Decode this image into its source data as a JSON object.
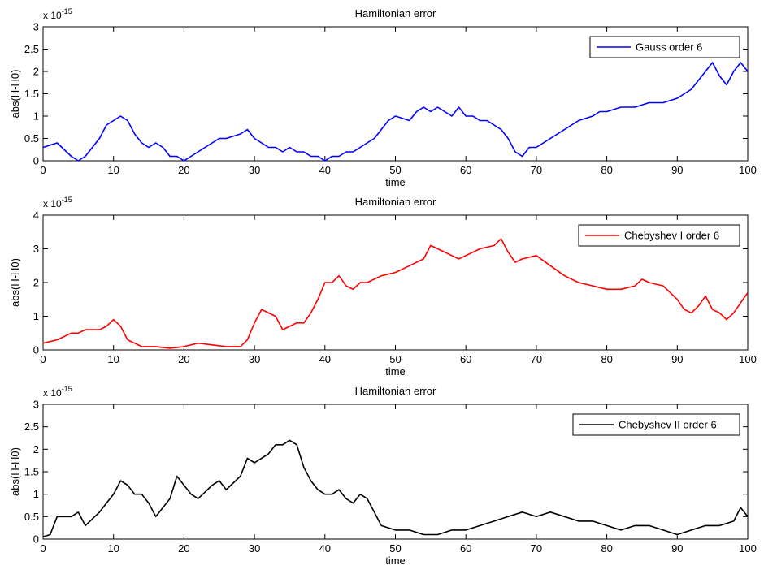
{
  "chart_data": [
    {
      "type": "line",
      "title": "Hamiltonian error",
      "xlabel": "time",
      "ylabel": "abs(H-H0)",
      "xlim": [
        0,
        100
      ],
      "ylim": [
        0,
        3
      ],
      "xticks": [
        0,
        10,
        20,
        30,
        40,
        50,
        60,
        70,
        80,
        90,
        100
      ],
      "yticks": [
        0,
        0.5,
        1,
        1.5,
        2,
        2.5,
        3
      ],
      "scale_base": "x 10",
      "scale_exponent": "-15",
      "legend_position": "top-right",
      "series": [
        {
          "name": "Gauss order 6",
          "color": "#0000ff",
          "x": [
            0,
            2,
            4,
            5,
            6,
            8,
            9,
            10,
            11,
            12,
            13,
            14,
            15,
            16,
            17,
            18,
            19,
            20,
            22,
            24,
            25,
            26,
            28,
            29,
            30,
            31,
            32,
            33,
            34,
            35,
            36,
            37,
            38,
            39,
            40,
            41,
            42,
            43,
            44,
            45,
            46,
            47,
            48,
            49,
            50,
            52,
            53,
            54,
            55,
            56,
            57,
            58,
            59,
            60,
            61,
            62,
            63,
            64,
            65,
            66,
            67,
            68,
            69,
            70,
            72,
            74,
            76,
            78,
            79,
            80,
            82,
            84,
            86,
            88,
            90,
            91,
            92,
            93,
            94,
            95,
            96,
            97,
            98,
            99,
            100
          ],
          "values": [
            0.3,
            0.4,
            0.1,
            0.0,
            0.1,
            0.5,
            0.8,
            0.9,
            1.0,
            0.9,
            0.6,
            0.4,
            0.3,
            0.4,
            0.3,
            0.1,
            0.1,
            0.0,
            0.2,
            0.4,
            0.5,
            0.5,
            0.6,
            0.7,
            0.5,
            0.4,
            0.3,
            0.3,
            0.2,
            0.3,
            0.2,
            0.2,
            0.1,
            0.1,
            0.0,
            0.1,
            0.1,
            0.2,
            0.2,
            0.3,
            0.4,
            0.5,
            0.7,
            0.9,
            1.0,
            0.9,
            1.1,
            1.2,
            1.1,
            1.2,
            1.1,
            1.0,
            1.2,
            1.0,
            1.0,
            0.9,
            0.9,
            0.8,
            0.7,
            0.5,
            0.2,
            0.1,
            0.3,
            0.3,
            0.5,
            0.7,
            0.9,
            1.0,
            1.1,
            1.1,
            1.2,
            1.2,
            1.3,
            1.3,
            1.4,
            1.5,
            1.6,
            1.8,
            2.0,
            2.2,
            1.9,
            1.7,
            2.0,
            2.2,
            2.0
          ]
        }
      ]
    },
    {
      "type": "line",
      "title": "Hamiltonian error",
      "xlabel": "time",
      "ylabel": "abs(H-H0)",
      "xlim": [
        0,
        100
      ],
      "ylim": [
        0,
        4
      ],
      "xticks": [
        0,
        10,
        20,
        30,
        40,
        50,
        60,
        70,
        80,
        90,
        100
      ],
      "yticks": [
        0,
        1,
        2,
        3,
        4
      ],
      "scale_base": "x 10",
      "scale_exponent": "-15",
      "legend_position": "top-right",
      "series": [
        {
          "name": "Chebyshev I order 6",
          "color": "#ff0000",
          "x": [
            0,
            2,
            4,
            5,
            6,
            8,
            9,
            10,
            11,
            12,
            13,
            14,
            16,
            18,
            20,
            22,
            24,
            26,
            28,
            29,
            30,
            31,
            32,
            33,
            34,
            35,
            36,
            37,
            38,
            39,
            40,
            41,
            42,
            43,
            44,
            45,
            46,
            48,
            50,
            52,
            54,
            55,
            56,
            57,
            58,
            59,
            60,
            62,
            64,
            65,
            66,
            67,
            68,
            70,
            72,
            74,
            76,
            78,
            80,
            82,
            84,
            85,
            86,
            88,
            89,
            90,
            91,
            92,
            93,
            94,
            95,
            96,
            97,
            98,
            99,
            100
          ],
          "values": [
            0.2,
            0.3,
            0.5,
            0.5,
            0.6,
            0.6,
            0.7,
            0.9,
            0.7,
            0.3,
            0.2,
            0.1,
            0.1,
            0.05,
            0.1,
            0.2,
            0.15,
            0.1,
            0.1,
            0.3,
            0.8,
            1.2,
            1.1,
            1.0,
            0.6,
            0.7,
            0.8,
            0.8,
            1.1,
            1.5,
            2.0,
            2.0,
            2.2,
            1.9,
            1.8,
            2.0,
            2.0,
            2.2,
            2.3,
            2.5,
            2.7,
            3.1,
            3.0,
            2.9,
            2.8,
            2.7,
            2.8,
            3.0,
            3.1,
            3.3,
            2.9,
            2.6,
            2.7,
            2.8,
            2.5,
            2.2,
            2.0,
            1.9,
            1.8,
            1.8,
            1.9,
            2.1,
            2.0,
            1.9,
            1.7,
            1.5,
            1.2,
            1.1,
            1.3,
            1.6,
            1.2,
            1.1,
            0.9,
            1.1,
            1.4,
            1.7
          ]
        }
      ]
    },
    {
      "type": "line",
      "title": "Hamiltonian error",
      "xlabel": "time",
      "ylabel": "abs(H-H0)",
      "xlim": [
        0,
        100
      ],
      "ylim": [
        0,
        3
      ],
      "xticks": [
        0,
        10,
        20,
        30,
        40,
        50,
        60,
        70,
        80,
        90,
        100
      ],
      "yticks": [
        0,
        0.5,
        1,
        1.5,
        2,
        2.5,
        3
      ],
      "scale_base": "x 10",
      "scale_exponent": "-15",
      "legend_position": "top-right",
      "series": [
        {
          "name": "Chebyshev II order 6",
          "color": "#000000",
          "x": [
            0,
            1,
            2,
            4,
            5,
            6,
            8,
            9,
            10,
            11,
            12,
            13,
            14,
            15,
            16,
            17,
            18,
            19,
            20,
            21,
            22,
            24,
            25,
            26,
            28,
            29,
            30,
            31,
            32,
            33,
            34,
            35,
            36,
            37,
            38,
            39,
            40,
            41,
            42,
            43,
            44,
            45,
            46,
            47,
            48,
            50,
            52,
            54,
            56,
            58,
            60,
            62,
            64,
            66,
            68,
            70,
            72,
            74,
            76,
            78,
            80,
            82,
            84,
            86,
            88,
            90,
            92,
            94,
            96,
            98,
            99,
            100
          ],
          "values": [
            0.05,
            0.1,
            0.5,
            0.5,
            0.6,
            0.3,
            0.6,
            0.8,
            1.0,
            1.3,
            1.2,
            1.0,
            1.0,
            0.8,
            0.5,
            0.7,
            0.9,
            1.4,
            1.2,
            1.0,
            0.9,
            1.2,
            1.3,
            1.1,
            1.4,
            1.8,
            1.7,
            1.8,
            1.9,
            2.1,
            2.1,
            2.2,
            2.1,
            1.6,
            1.3,
            1.1,
            1.0,
            1.0,
            1.1,
            0.9,
            0.8,
            1.0,
            0.9,
            0.6,
            0.3,
            0.2,
            0.2,
            0.1,
            0.1,
            0.2,
            0.2,
            0.3,
            0.4,
            0.5,
            0.6,
            0.5,
            0.6,
            0.5,
            0.4,
            0.4,
            0.3,
            0.2,
            0.3,
            0.3,
            0.2,
            0.1,
            0.2,
            0.3,
            0.3,
            0.4,
            0.7,
            0.5
          ]
        }
      ]
    }
  ]
}
